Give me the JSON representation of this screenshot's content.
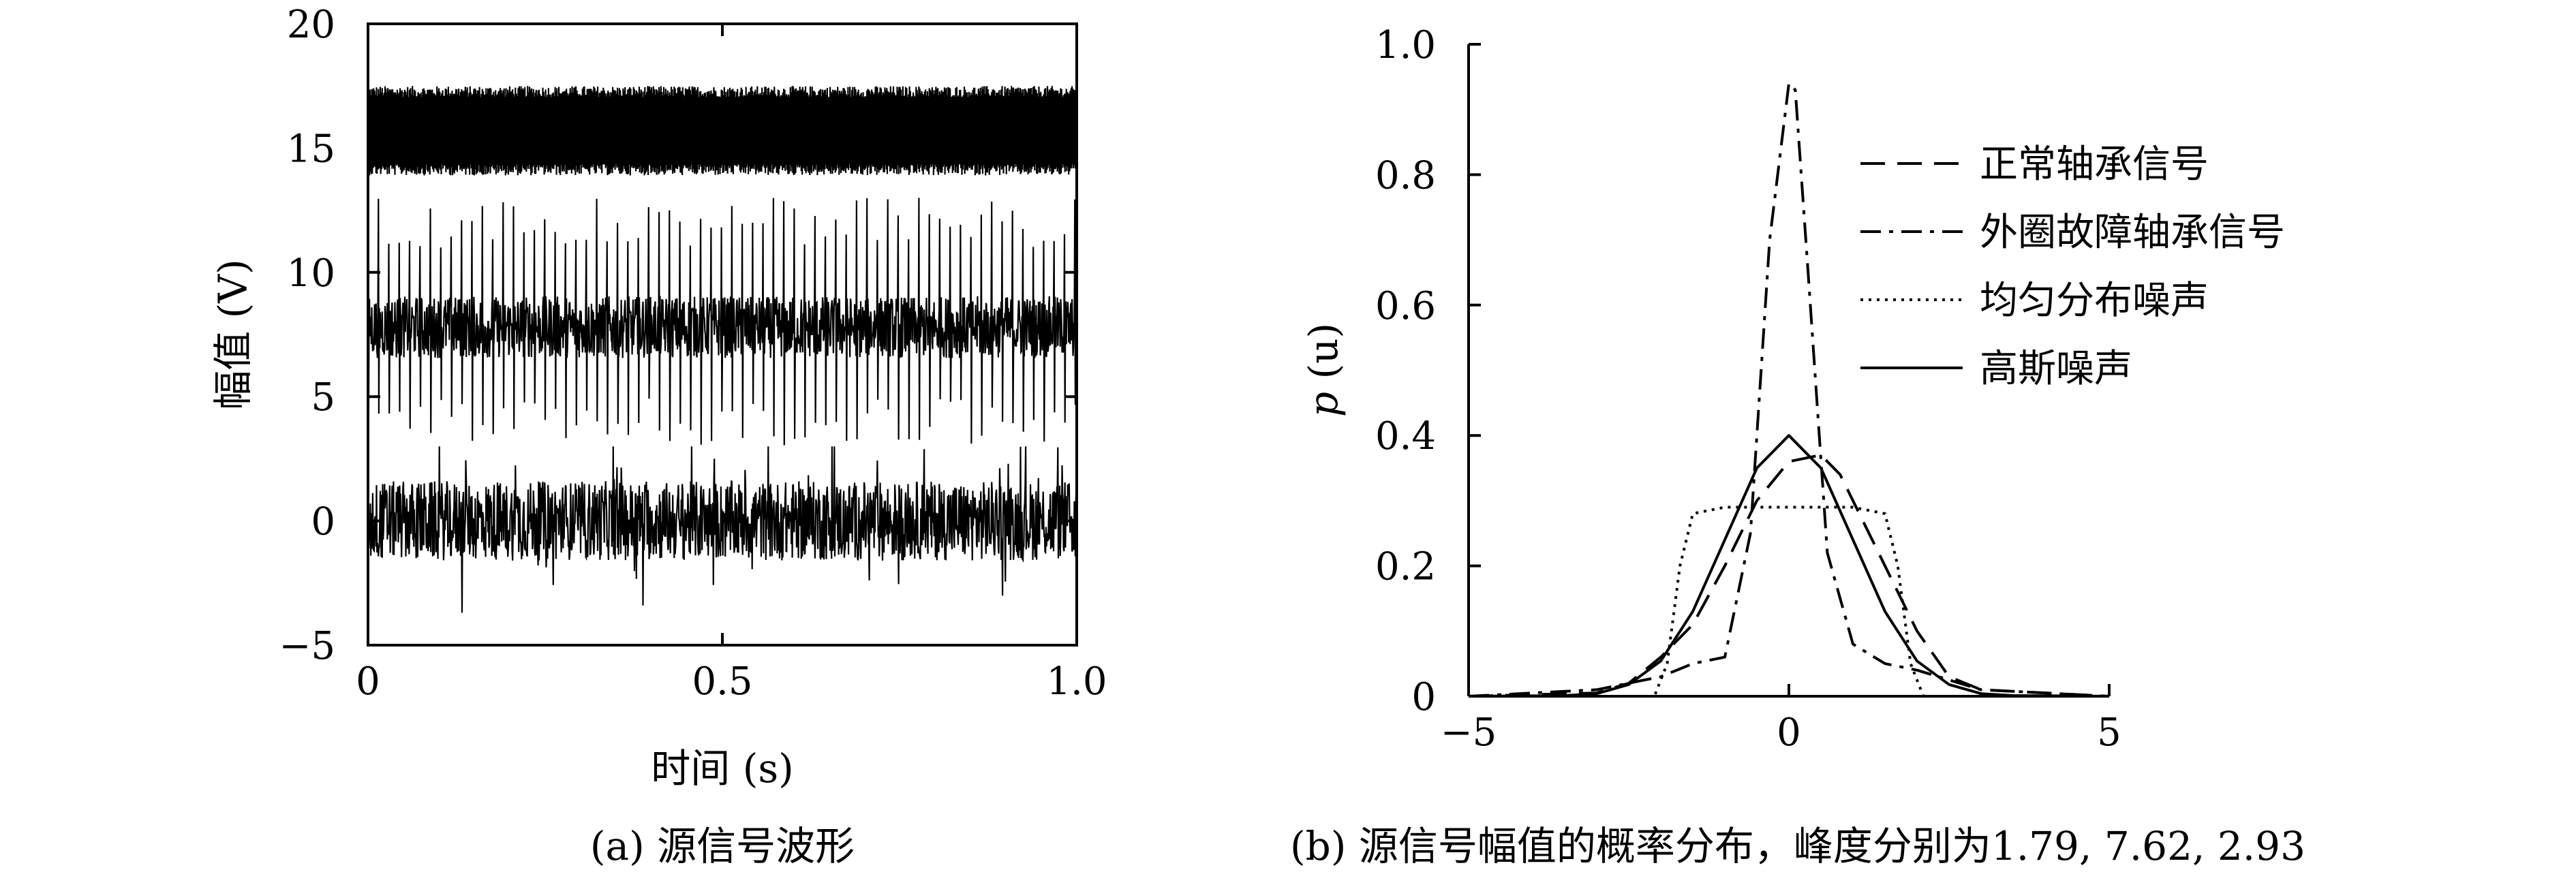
{
  "chart_data": [
    {
      "type": "line",
      "caption": "(a) 源信号波形",
      "xlabel": "时间 (s)",
      "ylabel": "幅值 (V)",
      "xlim": [
        0,
        1.0
      ],
      "ylim": [
        -5,
        20
      ],
      "xticks": [
        "0",
        "0.5",
        "1.0"
      ],
      "xtick_values": [
        0,
        0.5,
        1.0
      ],
      "yticks": [
        "−5",
        "0",
        "5",
        "10",
        "15",
        "20"
      ],
      "ytick_values": [
        -5,
        0,
        5,
        10,
        15,
        20
      ],
      "grid": false,
      "series": [
        {
          "center": 15.7,
          "min": 14.0,
          "max": 17.5
        },
        {
          "center": 7.8,
          "min": 3.0,
          "max": 13.0
        },
        {
          "center": 0.0,
          "min": -4.0,
          "max": 3.0
        }
      ]
    },
    {
      "type": "line",
      "caption": "(b) 源信号幅值的概率分布，峰度分别为1.79, 7.62, 2.93",
      "xlabel": "",
      "ylabel_italic": "p",
      "ylabel_rest": " (u)",
      "xlim": [
        -5,
        5
      ],
      "ylim": [
        0,
        1.0
      ],
      "xticks": [
        "−5",
        "0",
        "5"
      ],
      "xtick_values": [
        -5,
        0,
        5
      ],
      "yticks": [
        "0",
        "0.2",
        "0.4",
        "0.6",
        "0.8",
        "1.0"
      ],
      "ytick_values": [
        0,
        0.2,
        0.4,
        0.6,
        0.8,
        1.0
      ],
      "grid": false,
      "legend_position": "top-right",
      "series": [
        {
          "name": "正常轴承信号",
          "dash": "36,18",
          "x": [
            -5,
            -3,
            -2.5,
            -2,
            -1.5,
            -1,
            -0.5,
            0,
            0.5,
            0.8,
            1,
            1.5,
            2,
            2.5,
            3,
            5
          ],
          "y": [
            0,
            0.005,
            0.02,
            0.06,
            0.11,
            0.2,
            0.3,
            0.36,
            0.37,
            0.34,
            0.3,
            0.2,
            0.1,
            0.03,
            0.01,
            0
          ]
        },
        {
          "name": "外圈故障轴承信号",
          "dash": "30,12,6,12",
          "x": [
            -5,
            -3,
            -2,
            -1.5,
            -1,
            -0.6,
            -0.3,
            0,
            0.1,
            0.3,
            0.6,
            1,
            1.5,
            2,
            3,
            5
          ],
          "y": [
            0,
            0.01,
            0.03,
            0.05,
            0.06,
            0.25,
            0.7,
            0.94,
            0.93,
            0.65,
            0.22,
            0.08,
            0.05,
            0.04,
            0.01,
            0
          ]
        },
        {
          "name": "均匀分布噪声",
          "dash": "4,8",
          "x": [
            -5,
            -2.1,
            -1.9,
            -1.7,
            -1.5,
            -1.0,
            0,
            1.0,
            1.5,
            1.7,
            1.9,
            2.1,
            5
          ],
          "y": [
            0,
            0,
            0.05,
            0.2,
            0.28,
            0.29,
            0.29,
            0.29,
            0.28,
            0.2,
            0.05,
            0,
            0
          ]
        },
        {
          "name": "高斯噪声",
          "dash": "",
          "x": [
            -5,
            -3.5,
            -3,
            -2.5,
            -2,
            -1.5,
            -1,
            -0.5,
            0,
            0.5,
            1,
            1.5,
            2,
            2.5,
            3,
            3.5,
            5
          ],
          "y": [
            0,
            0.001,
            0.004,
            0.018,
            0.054,
            0.13,
            0.24,
            0.35,
            0.4,
            0.35,
            0.24,
            0.13,
            0.054,
            0.018,
            0.004,
            0.001,
            0
          ]
        }
      ]
    }
  ]
}
